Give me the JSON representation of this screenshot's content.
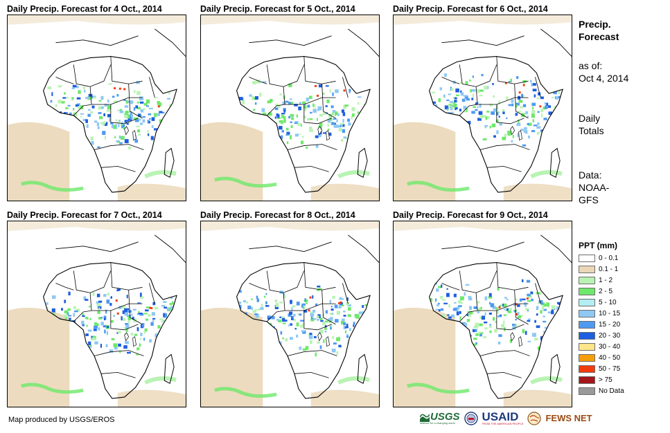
{
  "panels": [
    {
      "title": "Daily Precip. Forecast for 4 Oct., 2014"
    },
    {
      "title": "Daily Precip. Forecast for 5 Oct., 2014"
    },
    {
      "title": "Daily Precip. Forecast for 6 Oct., 2014"
    },
    {
      "title": "Daily Precip. Forecast for 7 Oct., 2014"
    },
    {
      "title": "Daily Precip. Forecast for 8 Oct., 2014"
    },
    {
      "title": "Daily Precip. Forecast for 9 Oct., 2014"
    }
  ],
  "sidebar": {
    "heading_line1": "Precip.",
    "heading_line2": "Forecast",
    "asof_line1": "as of:",
    "asof_line2": "Oct 4, 2014",
    "daily_line1": "Daily",
    "daily_line2": "Totals",
    "data_line1": "Data:",
    "data_line2": "NOAA-",
    "data_line3": "GFS"
  },
  "legend": {
    "title": "PPT (mm)",
    "items": [
      {
        "label": "0 - 0.1",
        "color": "#ffffff"
      },
      {
        "label": "0.1 - 1",
        "color": "#ead7b7"
      },
      {
        "label": "1 - 2",
        "color": "#b9f3b3"
      },
      {
        "label": "2 - 5",
        "color": "#6ee86a"
      },
      {
        "label": "5 - 10",
        "color": "#b3eef2"
      },
      {
        "label": "10 - 15",
        "color": "#8ec8f5"
      },
      {
        "label": "15 - 20",
        "color": "#4f9af0"
      },
      {
        "label": "20 - 30",
        "color": "#1e5fe0"
      },
      {
        "label": "30 - 40",
        "color": "#fde68a"
      },
      {
        "label": "40 - 50",
        "color": "#f59e0b"
      },
      {
        "label": "50 - 75",
        "color": "#f23c0d"
      },
      {
        "label": "> 75",
        "color": "#a4161a"
      },
      {
        "label": "No Data",
        "color": "#9a9a9a"
      }
    ]
  },
  "footer": {
    "credit": "Map produced by USGS/EROS",
    "logo_usgs": "USGS",
    "logo_usgs_tag": "science for a changing world",
    "logo_usaid": "USAID",
    "logo_usaid_tag": "FROM THE AMERICAN PEOPLE",
    "logo_fews": "FEWS NET"
  }
}
